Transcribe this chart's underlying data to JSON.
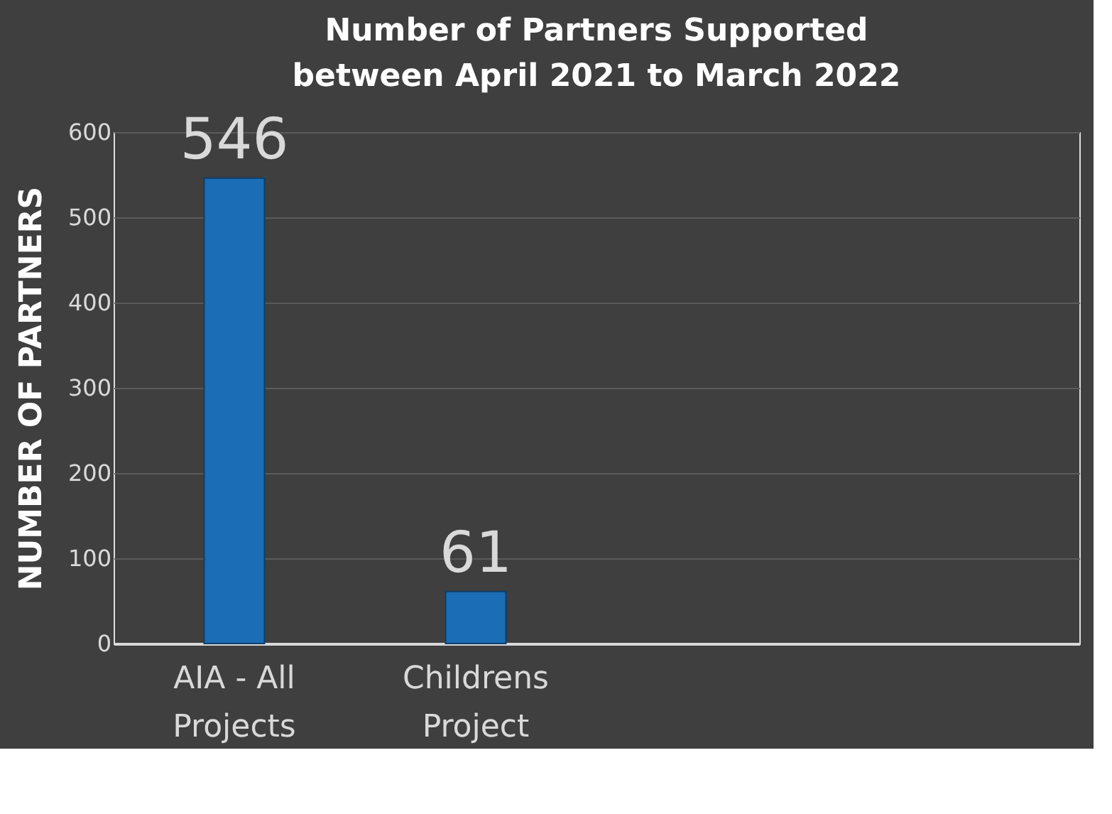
{
  "chart_data": {
    "type": "bar",
    "title": "Number of Partners Supported between April 2021 to March 2022",
    "ylabel": "NUMBER OF PARTNERS",
    "categories": [
      "AIA - All Projects",
      "Childrens Project",
      null,
      null
    ],
    "values": [
      546,
      61,
      null,
      null
    ],
    "color": "#1b6db5",
    "ylim": [
      0,
      600
    ],
    "yticks": [
      0,
      100,
      200,
      300,
      400,
      500,
      600
    ],
    "grid": "y",
    "data_labels": true
  }
}
